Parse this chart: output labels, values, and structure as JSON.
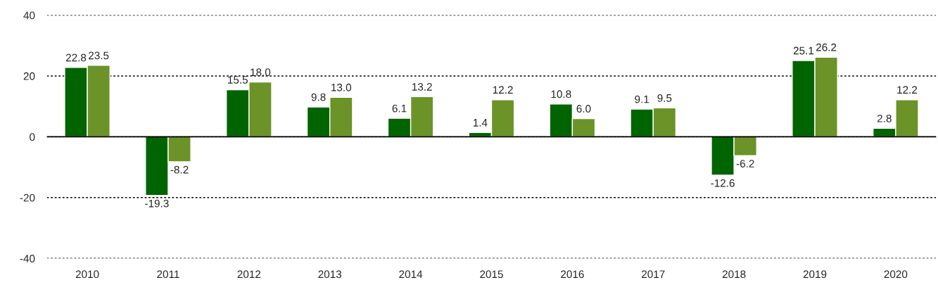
{
  "chart_data": {
    "type": "bar",
    "categories": [
      "2010",
      "2011",
      "2012",
      "2013",
      "2014",
      "2015",
      "2016",
      "2017",
      "2018",
      "2019",
      "2020"
    ],
    "series": [
      {
        "color": "#006400",
        "values": [
          22.8,
          -19.3,
          15.5,
          9.8,
          6.1,
          1.4,
          10.8,
          9.1,
          -12.6,
          25.1,
          2.8
        ],
        "value_labels": [
          "22.8",
          "-19.3",
          "15.5",
          "9.8",
          "6.1",
          "1.4",
          "10.8",
          "9.1",
          "-12.6",
          "25.1",
          "2.8"
        ]
      },
      {
        "color": "#6b9328",
        "values": [
          23.5,
          -8.2,
          18.0,
          13.0,
          13.2,
          12.2,
          6.0,
          9.5,
          -6.2,
          26.2,
          12.2
        ],
        "value_labels": [
          "23.5",
          "-8.2",
          "18.0",
          "13.0",
          "13.2",
          "12.2",
          "6.0",
          "9.5",
          "-6.2",
          "26.2",
          "12.2"
        ]
      }
    ],
    "ylim": [
      -40,
      40
    ],
    "yticks": [
      -40,
      -20,
      0,
      20,
      40
    ],
    "grid": "y",
    "ref_lines": [
      {
        "axis": "y",
        "value": 0,
        "color": "#000000",
        "line_style": "solid"
      }
    ]
  }
}
